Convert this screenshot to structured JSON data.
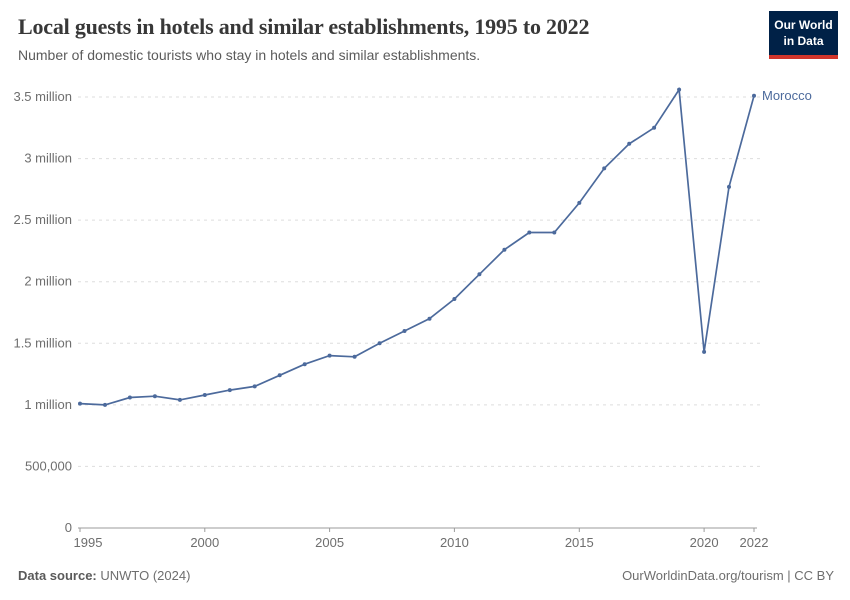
{
  "header": {
    "title": "Local guests in hotels and similar establishments, 1995 to 2022",
    "subtitle": "Number of domestic tourists who stay in hotels and similar establishments."
  },
  "logo": {
    "line1": "Our World",
    "line2": "in Data"
  },
  "colors": {
    "line": "#4C6A9C",
    "logo_background": "#002147",
    "logo_underline": "#D1352B",
    "grid": "#DDDDDD",
    "axis": "#9B9B9B",
    "tick_text": "#6E6E6E"
  },
  "chart_data": {
    "type": "line",
    "title": "Local guests in hotels and similar establishments, 1995 to 2022",
    "series_label": "Morocco",
    "x": [
      1995,
      1996,
      1997,
      1998,
      1999,
      2000,
      2001,
      2002,
      2003,
      2004,
      2005,
      2006,
      2007,
      2008,
      2009,
      2010,
      2011,
      2012,
      2013,
      2014,
      2015,
      2016,
      2017,
      2018,
      2019,
      2020,
      2021,
      2022
    ],
    "values": [
      1010000,
      1000000,
      1060000,
      1070000,
      1040000,
      1080000,
      1120000,
      1150000,
      1240000,
      1330000,
      1400000,
      1390000,
      1500000,
      1600000,
      1700000,
      1860000,
      2060000,
      2260000,
      2400000,
      2400000,
      2640000,
      2920000,
      3120000,
      3250000,
      3560000,
      1430000,
      2770000,
      3510000
    ],
    "xlabel": "",
    "ylabel": "",
    "ylim": [
      0,
      3500000
    ],
    "xlim": [
      1995,
      2022
    ],
    "grid": "horizontal-dashed",
    "legend_position": "end-of-line-label",
    "xticks": [
      1995,
      2000,
      2005,
      2010,
      2015,
      2020,
      2022
    ],
    "yticks": [
      {
        "value": 0,
        "label": "0"
      },
      {
        "value": 500000,
        "label": "500,000"
      },
      {
        "value": 1000000,
        "label": "1 million"
      },
      {
        "value": 1500000,
        "label": "1.5 million"
      },
      {
        "value": 2000000,
        "label": "2 million"
      },
      {
        "value": 2500000,
        "label": "2.5 million"
      },
      {
        "value": 3000000,
        "label": "3 million"
      },
      {
        "value": 3500000,
        "label": "3.5 million"
      }
    ]
  },
  "footer": {
    "source_label": "Data source:",
    "source_value": "UNWTO (2024)",
    "link": "OurWorldinData.org/tourism | CC BY"
  }
}
